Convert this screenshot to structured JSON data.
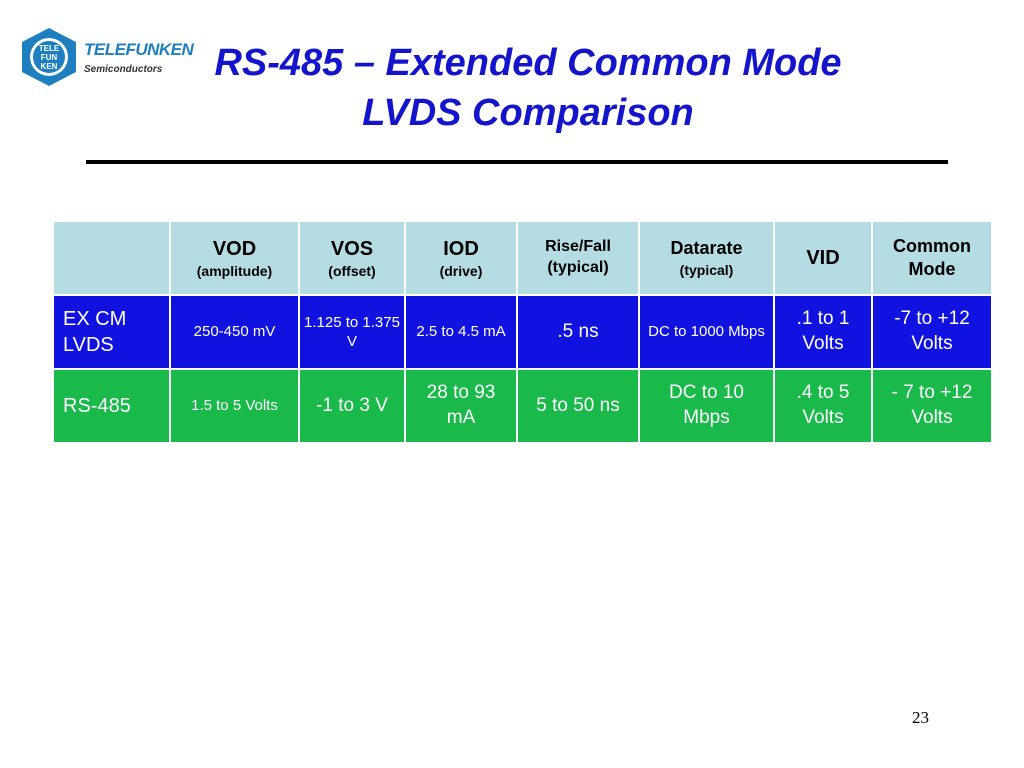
{
  "logo": {
    "brand": "TELEFUNKEN",
    "subtitle": "Semiconductors",
    "seal_letters": [
      "TELE",
      "FUN",
      "KEN"
    ]
  },
  "title": {
    "line1": "RS-485 – Extended Common Mode",
    "line2": "LVDS Comparison"
  },
  "table": {
    "header": [
      {
        "main": "",
        "sub": ""
      },
      {
        "main": "VOD",
        "sub": "(amplitude)"
      },
      {
        "main": "VOS",
        "sub": "(offset)"
      },
      {
        "main": "IOD",
        "sub": "(drive)"
      },
      {
        "main": "Rise/Fall",
        "sub": "(typical)"
      },
      {
        "main": "Datarate",
        "sub": "(typical)"
      },
      {
        "main": "VID",
        "sub": ""
      },
      {
        "main": "Common",
        "sub": "Mode"
      }
    ],
    "rows": [
      {
        "label": "EX CM LVDS",
        "cells": [
          "250-450 mV",
          "1.125 to 1.375 V",
          "2.5 to 4.5 mA",
          ".5 ns",
          "DC to 1000 Mbps",
          ".1 to 1 Volts",
          "-7 to +12 Volts"
        ]
      },
      {
        "label": "RS-485",
        "cells": [
          "1.5 to 5 Volts",
          "-1 to 3 V",
          "28 to 93 mA",
          "5 to 50 ns",
          "DC to 10 Mbps",
          ".4 to 5 Volts",
          "- 7 to +12 Volts"
        ]
      }
    ]
  },
  "page_number": "23",
  "colors": {
    "title": "#1414cc",
    "header_bg": "#b4dce2",
    "lvds_row_bg": "#1212e0",
    "rs485_row_bg": "#19b94a",
    "logo_blue": "#1e7fc0"
  }
}
